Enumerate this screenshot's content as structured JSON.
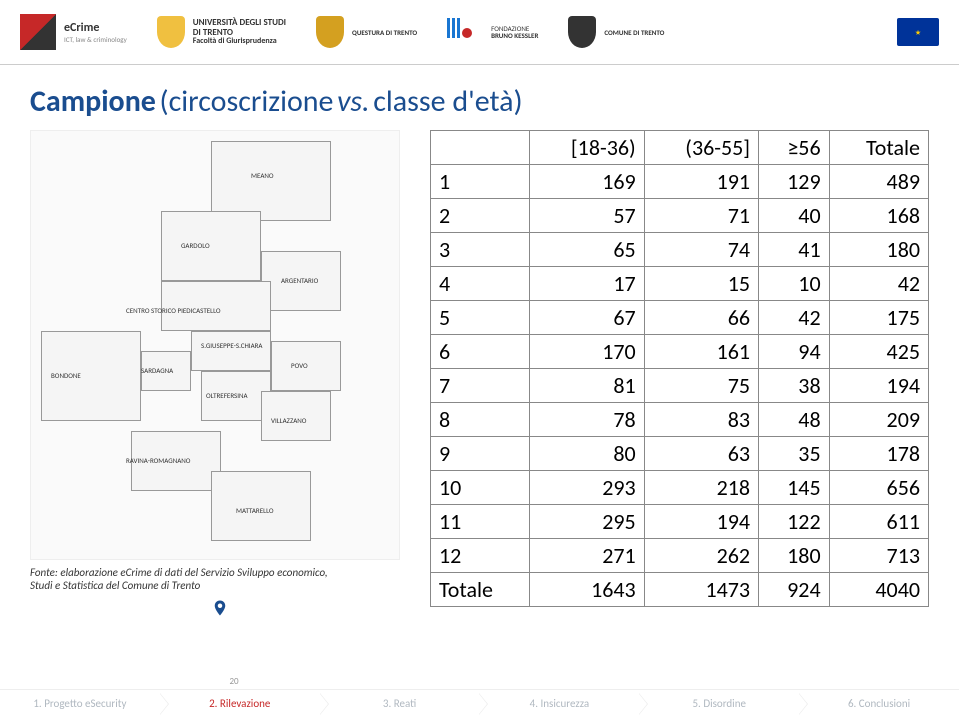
{
  "header": {
    "ecrime": {
      "name": "eCrime",
      "sub": "ICT, law & criminology"
    },
    "uni": {
      "name": "UNIVERSITÀ DEGLI STUDI",
      "city": "DI TRENTO",
      "dept": "Facoltà di Giurisprudenza"
    },
    "questura": "QUESTURA DI TRENTO",
    "fbk": {
      "top": "FONDAZIONE",
      "bottom": "BRUNO KESSLER"
    },
    "comune": "COMUNE DI TRENTO"
  },
  "title": {
    "a": "Campione",
    "b": "(circoscrizione",
    "c": "vs.",
    "d": "classe d'età)"
  },
  "map": {
    "labels": [
      "MEANO",
      "GARDOLO",
      "ARGENTARIO",
      "CENTRO STORICO PIEDICASTELLO",
      "S.GIUSEPPE-S.CHIARA",
      "BONDONE",
      "SARDAGNA",
      "POVO",
      "OLTREFERSINA",
      "VILLAZZANO",
      "RAVINA-ROMAGNANO",
      "MATTARELLO"
    ]
  },
  "source": {
    "l1": "Fonte: elaborazione eCrime di dati del Servizio Sviluppo economico,",
    "l2": "Studi e Statistica del Comune di Trento"
  },
  "table": {
    "headers": [
      "",
      "[18-36)",
      "(36-55]",
      "≥56",
      "Totale"
    ],
    "rows": [
      [
        "1",
        "169",
        "191",
        "129",
        "489"
      ],
      [
        "2",
        "57",
        "71",
        "40",
        "168"
      ],
      [
        "3",
        "65",
        "74",
        "41",
        "180"
      ],
      [
        "4",
        "17",
        "15",
        "10",
        "42"
      ],
      [
        "5",
        "67",
        "66",
        "42",
        "175"
      ],
      [
        "6",
        "170",
        "161",
        "94",
        "425"
      ],
      [
        "7",
        "81",
        "75",
        "38",
        "194"
      ],
      [
        "8",
        "78",
        "83",
        "48",
        "209"
      ],
      [
        "9",
        "80",
        "63",
        "35",
        "178"
      ],
      [
        "10",
        "293",
        "218",
        "145",
        "656"
      ],
      [
        "11",
        "295",
        "194",
        "122",
        "611"
      ],
      [
        "12",
        "271",
        "262",
        "180",
        "713"
      ],
      [
        "Totale",
        "1643",
        "1473",
        "924",
        "4040"
      ]
    ]
  },
  "footer": {
    "steps": [
      "1. Progetto eSecurity",
      "2. Rilevazione",
      "3. Reati",
      "4. Insicurezza",
      "5. Disordine",
      "6. Conclusioni"
    ],
    "active_index": 1,
    "page": "20"
  }
}
